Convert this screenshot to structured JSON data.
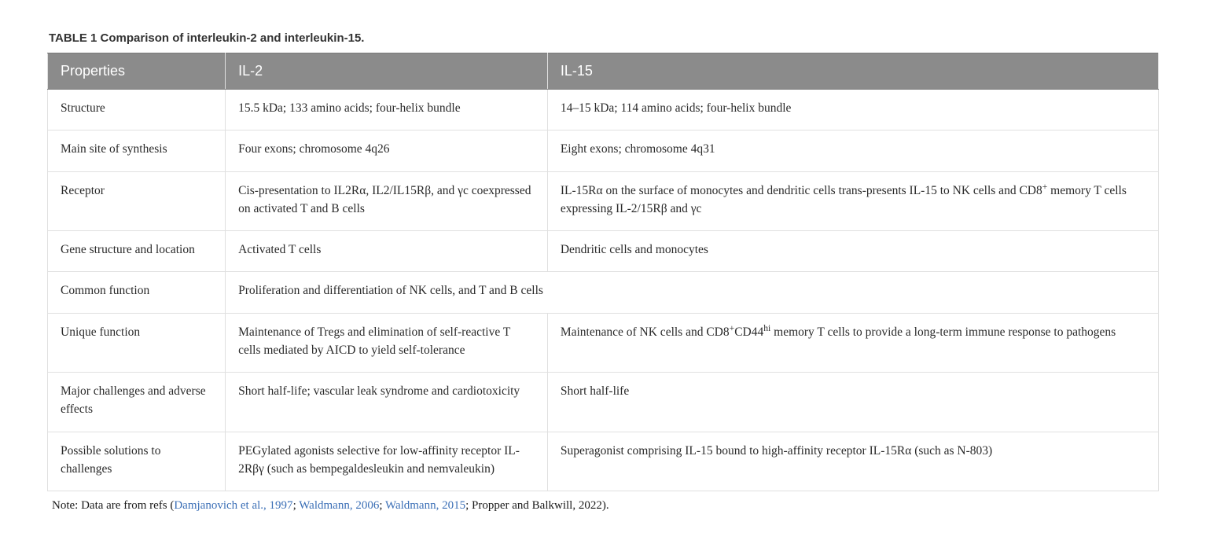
{
  "caption": "TABLE 1 Comparison of interleukin-2 and interleukin-15.",
  "headers": [
    "Properties",
    "IL-2",
    "IL-15"
  ],
  "rows": [
    {
      "property": "Structure",
      "il2": "15.5 kDa; 133 amino acids; four-helix bundle",
      "il15": "14–15 kDa; 114 amino acids; four-helix bundle"
    },
    {
      "property": "Main site of synthesis",
      "il2": "Four exons; chromosome 4q26",
      "il15": "Eight exons; chromosome 4q31"
    },
    {
      "property": "Receptor",
      "il2": "Cis-presentation to IL2Rα, IL2/IL15Rβ, and γc coexpressed on activated T and B cells",
      "il15_html": "IL-15Rα on the surface of monocytes and dendritic cells trans-presents IL-15 to NK cells and CD8<sup>+</sup> memory T cells expressing IL-2/15Rβ and γc"
    },
    {
      "property": "Gene structure and location",
      "il2": "Activated T cells",
      "il15": "Dendritic cells and monocytes"
    },
    {
      "property": "Common function",
      "merged": "Proliferation and differentiation of NK cells, and T and B cells"
    },
    {
      "property": "Unique function",
      "il2": "Maintenance of Tregs and elimination of self-reactive T cells mediated by AICD to yield self-tolerance",
      "il15_html": "Maintenance of NK cells and CD8<sup>+</sup>CD44<sup>hi</sup> memory T cells to provide a long-term immune response to pathogens"
    },
    {
      "property": "Major challenges and adverse effects",
      "il2": "Short half-life; vascular leak syndrome and cardiotoxicity",
      "il15": "Short half-life"
    },
    {
      "property": "Possible solutions to challenges",
      "il2": "PEGylated agonists selective for low-affinity receptor IL-2Rβγ (such as bempegaldesleukin and nemvaleukin)",
      "il15": "Superagonist comprising IL-15 bound to high-affinity receptor IL-15Rα (such as N-803)"
    }
  ],
  "note_prefix": "Note: Data are from refs (",
  "note_refs": [
    "Damjanovich et al., 1997",
    "Waldmann, 2006",
    "Waldmann, 2015"
  ],
  "note_last_ref": "Propper and Balkwill, 2022",
  "note_suffix": ").",
  "styling": {
    "type": "table",
    "header_bg": "#8b8b8b",
    "header_text_color": "#ffffff",
    "cell_border_color": "#e0e0e0",
    "body_text_color": "#2a2a2a",
    "ref_link_color": "#3b6fb6",
    "background_color": "#ffffff",
    "caption_font": "sans-serif bold 15px",
    "header_font": "sans-serif 18px",
    "body_font": "serif 15.5px",
    "column_widths_pct": [
      16,
      29,
      55
    ]
  }
}
